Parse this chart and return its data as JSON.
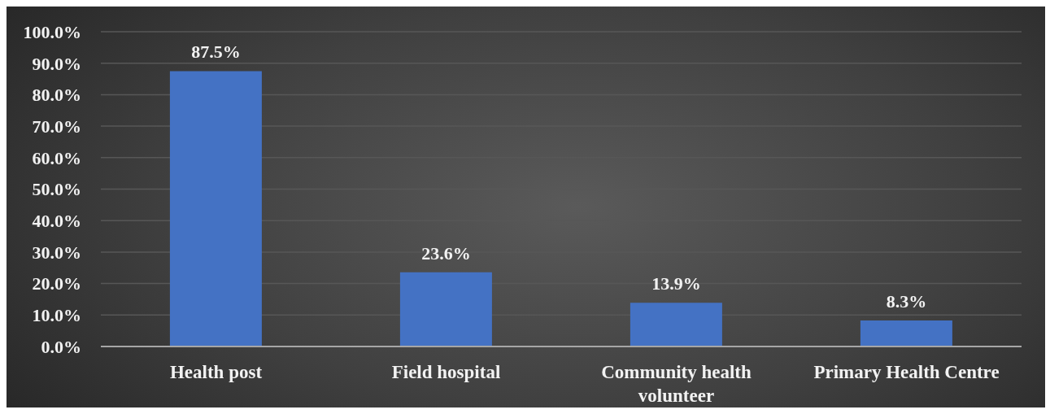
{
  "chart_data": {
    "type": "bar",
    "categories": [
      "Health post",
      "Field hospital",
      "Community health volunteer",
      "Primary Health Centre"
    ],
    "values": [
      87.5,
      23.6,
      13.9,
      8.3
    ],
    "value_labels": [
      "87.5%",
      "23.6%",
      "13.9%",
      "8.3%"
    ],
    "color": "#4472c4",
    "ylim": [
      0,
      100
    ],
    "yticks": [
      {
        "value": 0,
        "label": "0.0%"
      },
      {
        "value": 10,
        "label": "10.0%"
      },
      {
        "value": 20,
        "label": "20.0%"
      },
      {
        "value": 30,
        "label": "30.0%"
      },
      {
        "value": 40,
        "label": "40.0%"
      },
      {
        "value": 50,
        "label": "50.0%"
      },
      {
        "value": 60,
        "label": "60.0%"
      },
      {
        "value": 70,
        "label": "70.0%"
      },
      {
        "value": 80,
        "label": "80.0%"
      },
      {
        "value": 90,
        "label": "90.0%"
      },
      {
        "value": 100,
        "label": "100.0%"
      }
    ],
    "grid": "y"
  }
}
